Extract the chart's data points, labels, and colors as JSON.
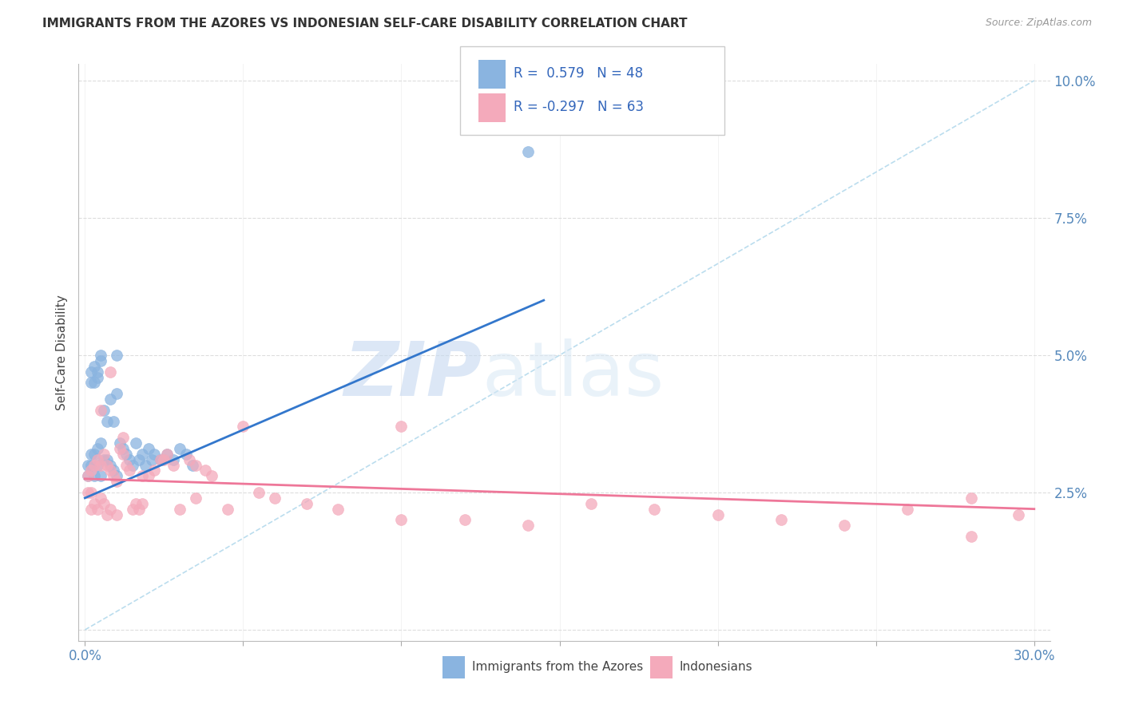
{
  "title": "IMMIGRANTS FROM THE AZORES VS INDONESIAN SELF-CARE DISABILITY CORRELATION CHART",
  "source": "Source: ZipAtlas.com",
  "ylabel": "Self-Care Disability",
  "xlabel_ticks_all": [
    "0.0%",
    "",
    "",
    "",
    "",
    "",
    "30.0%"
  ],
  "xlabel_vals": [
    0.0,
    0.05,
    0.1,
    0.15,
    0.2,
    0.25,
    0.3
  ],
  "ylabel_ticks": [
    "",
    "2.5%",
    "5.0%",
    "7.5%",
    "10.0%"
  ],
  "ylabel_vals": [
    0.0,
    0.025,
    0.05,
    0.075,
    0.1
  ],
  "xlim": [
    -0.002,
    0.305
  ],
  "ylim": [
    -0.002,
    0.103
  ],
  "R_azores": 0.579,
  "N_azores": 48,
  "R_indonesian": -0.297,
  "N_indonesian": 63,
  "color_azores": "#8AB4E0",
  "color_indonesian": "#F4AABB",
  "color_azores_line": "#3377CC",
  "color_indonesian_line": "#EE7799",
  "color_dashed": "#BBDDEE",
  "watermark_zip": "ZIP",
  "watermark_atlas": "atlas",
  "legend_label_azores": "Immigrants from the Azores",
  "legend_label_indonesian": "Indonesians",
  "azores_x": [
    0.001,
    0.001,
    0.002,
    0.002,
    0.002,
    0.003,
    0.003,
    0.003,
    0.004,
    0.004,
    0.004,
    0.005,
    0.005,
    0.005,
    0.006,
    0.006,
    0.007,
    0.007,
    0.008,
    0.008,
    0.009,
    0.009,
    0.01,
    0.01,
    0.011,
    0.012,
    0.013,
    0.014,
    0.015,
    0.016,
    0.017,
    0.018,
    0.019,
    0.02,
    0.021,
    0.022,
    0.024,
    0.026,
    0.028,
    0.03,
    0.032,
    0.034,
    0.002,
    0.003,
    0.004,
    0.005,
    0.01,
    0.14
  ],
  "azores_y": [
    0.028,
    0.03,
    0.03,
    0.032,
    0.045,
    0.028,
    0.032,
    0.048,
    0.03,
    0.033,
    0.046,
    0.028,
    0.034,
    0.05,
    0.031,
    0.04,
    0.031,
    0.038,
    0.03,
    0.042,
    0.029,
    0.038,
    0.028,
    0.043,
    0.034,
    0.033,
    0.032,
    0.031,
    0.03,
    0.034,
    0.031,
    0.032,
    0.03,
    0.033,
    0.031,
    0.032,
    0.031,
    0.032,
    0.031,
    0.033,
    0.032,
    0.03,
    0.047,
    0.045,
    0.047,
    0.049,
    0.05,
    0.087
  ],
  "indonesian_x": [
    0.001,
    0.001,
    0.002,
    0.002,
    0.003,
    0.003,
    0.004,
    0.004,
    0.005,
    0.005,
    0.006,
    0.006,
    0.007,
    0.007,
    0.008,
    0.008,
    0.009,
    0.01,
    0.01,
    0.011,
    0.012,
    0.013,
    0.014,
    0.015,
    0.016,
    0.017,
    0.018,
    0.02,
    0.022,
    0.024,
    0.026,
    0.028,
    0.03,
    0.033,
    0.035,
    0.038,
    0.04,
    0.045,
    0.05,
    0.055,
    0.06,
    0.07,
    0.08,
    0.1,
    0.12,
    0.14,
    0.16,
    0.18,
    0.2,
    0.22,
    0.24,
    0.26,
    0.28,
    0.295,
    0.002,
    0.005,
    0.008,
    0.012,
    0.018,
    0.025,
    0.035,
    0.1,
    0.28
  ],
  "indonesian_y": [
    0.028,
    0.025,
    0.029,
    0.022,
    0.03,
    0.023,
    0.031,
    0.022,
    0.03,
    0.024,
    0.032,
    0.023,
    0.03,
    0.021,
    0.029,
    0.022,
    0.028,
    0.027,
    0.021,
    0.033,
    0.032,
    0.03,
    0.029,
    0.022,
    0.023,
    0.022,
    0.028,
    0.028,
    0.029,
    0.031,
    0.032,
    0.03,
    0.022,
    0.031,
    0.03,
    0.029,
    0.028,
    0.022,
    0.037,
    0.025,
    0.024,
    0.023,
    0.022,
    0.02,
    0.02,
    0.019,
    0.023,
    0.022,
    0.021,
    0.02,
    0.019,
    0.022,
    0.017,
    0.021,
    0.025,
    0.04,
    0.047,
    0.035,
    0.023,
    0.031,
    0.024,
    0.037,
    0.024
  ],
  "azores_line_x": [
    0.0,
    0.145
  ],
  "azores_line_y": [
    0.024,
    0.06
  ],
  "indo_line_x": [
    0.0,
    0.3
  ],
  "indo_line_y": [
    0.0275,
    0.022
  ],
  "diag_line_x": [
    0.0,
    0.3
  ],
  "diag_line_y": [
    0.0,
    0.1
  ]
}
